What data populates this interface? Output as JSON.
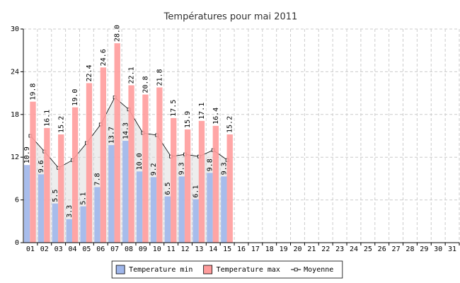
{
  "chart_data": {
    "type": "bar",
    "title": "Températures pour mai 2011",
    "categories": [
      "01",
      "02",
      "03",
      "04",
      "05",
      "06",
      "07",
      "08",
      "09",
      "10",
      "11",
      "12",
      "13",
      "14",
      "15",
      "16",
      "17",
      "18",
      "19",
      "20",
      "21",
      "22",
      "23",
      "24",
      "25",
      "26",
      "27",
      "28",
      "29",
      "30",
      "31"
    ],
    "series": [
      {
        "name": "Temperature min",
        "color": "#9fb6ea",
        "values": [
          10.9,
          9.6,
          5.5,
          3.3,
          5.1,
          7.8,
          13.7,
          14.3,
          10.0,
          9.2,
          6.5,
          9.3,
          6.1,
          9.8,
          9.3,
          null,
          null,
          null,
          null,
          null,
          null,
          null,
          null,
          null,
          null,
          null,
          null,
          null,
          null,
          null,
          null
        ],
        "value_labels": [
          "10.9",
          "9.6",
          "5.5",
          "3.3",
          "5.1",
          "7.8",
          "13.7",
          "14.3",
          "10.0",
          "9.2",
          "6.5",
          "9.3",
          "6.1",
          "9.8",
          "9.3",
          null,
          null,
          null,
          null,
          null,
          null,
          null,
          null,
          null,
          null,
          null,
          null,
          null,
          null,
          null,
          null
        ]
      },
      {
        "name": "Temperature max",
        "color": "#ff9c9c",
        "values": [
          19.8,
          16.1,
          15.2,
          19.0,
          22.4,
          24.6,
          28.0,
          22.1,
          20.8,
          21.8,
          17.5,
          15.9,
          17.1,
          16.4,
          15.2,
          null,
          null,
          null,
          null,
          null,
          null,
          null,
          null,
          null,
          null,
          null,
          null,
          null,
          null,
          null,
          null
        ],
        "value_labels": [
          "19.8",
          "16.1",
          "15.2",
          "19.0",
          "22.4",
          "24.6",
          "28.0",
          "22.1",
          "20.8",
          "21.8",
          "17.5",
          "15.9",
          "17.1",
          "16.4",
          "15.2",
          null,
          null,
          null,
          null,
          null,
          null,
          null,
          null,
          null,
          null,
          null,
          null,
          null,
          null,
          null,
          null
        ]
      },
      {
        "name": "Moyenne",
        "type": "line",
        "color": "#000000",
        "values": [
          15.0,
          12.8,
          10.5,
          11.6,
          14.0,
          16.6,
          20.4,
          18.7,
          15.4,
          15.1,
          12.1,
          12.4,
          12.1,
          13.0,
          11.6,
          null,
          null,
          null,
          null,
          null,
          null,
          null,
          null,
          null,
          null,
          null,
          null,
          null,
          null,
          null,
          null
        ]
      }
    ],
    "ylim": [
      0,
      30
    ],
    "yticks": [
      0,
      6,
      12,
      18,
      24,
      30
    ],
    "grid": true,
    "legend": "bottom"
  }
}
